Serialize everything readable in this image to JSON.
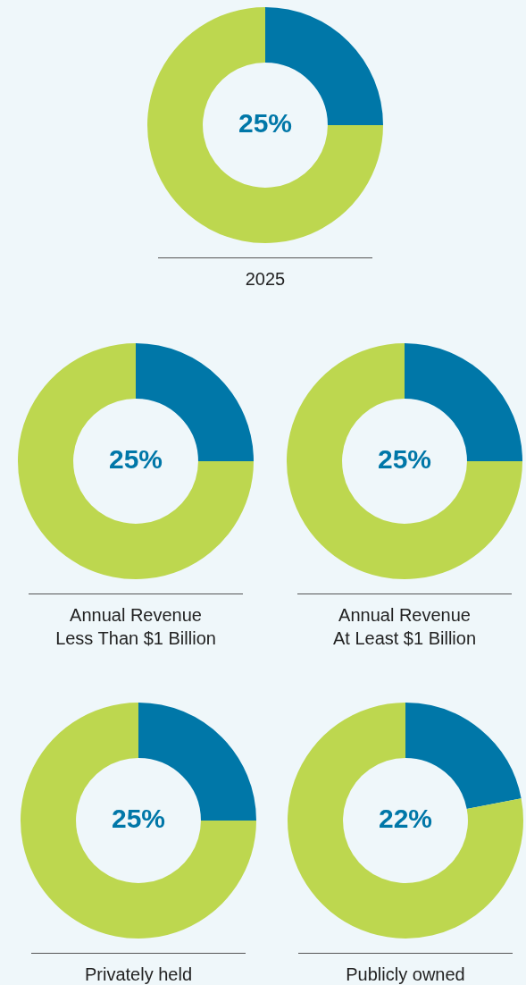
{
  "chart_data": [
    {
      "type": "donut",
      "title": "2025",
      "categories": [
        null,
        null
      ],
      "values": [
        25,
        75
      ],
      "colors": [
        "#0077a8",
        "#bdd74f"
      ],
      "value_labels": [
        "25%",
        null
      ]
    },
    {
      "type": "donut",
      "title": "Annual Revenue\nLess Than $1 Billion",
      "categories": [
        null,
        null
      ],
      "values": [
        25,
        75
      ],
      "colors": [
        "#0077a8",
        "#bdd74f"
      ],
      "value_labels": [
        "25%",
        null
      ]
    },
    {
      "type": "donut",
      "title": "Annual Revenue\nAt Least $1 Billion",
      "categories": [
        null,
        null
      ],
      "values": [
        25,
        75
      ],
      "colors": [
        "#0077a8",
        "#bdd74f"
      ],
      "value_labels": [
        "25%",
        null
      ]
    },
    {
      "type": "donut",
      "title": "Privately held",
      "categories": [
        null,
        null
      ],
      "values": [
        25,
        75
      ],
      "colors": [
        "#0077a8",
        "#bdd74f"
      ],
      "value_labels": [
        "25%",
        null
      ]
    },
    {
      "type": "donut",
      "title": "Publicly owned",
      "categories": [
        null,
        null
      ],
      "values": [
        22,
        78
      ],
      "colors": [
        "#0077a8",
        "#bdd74f"
      ],
      "value_labels": [
        "22%",
        null
      ]
    }
  ]
}
